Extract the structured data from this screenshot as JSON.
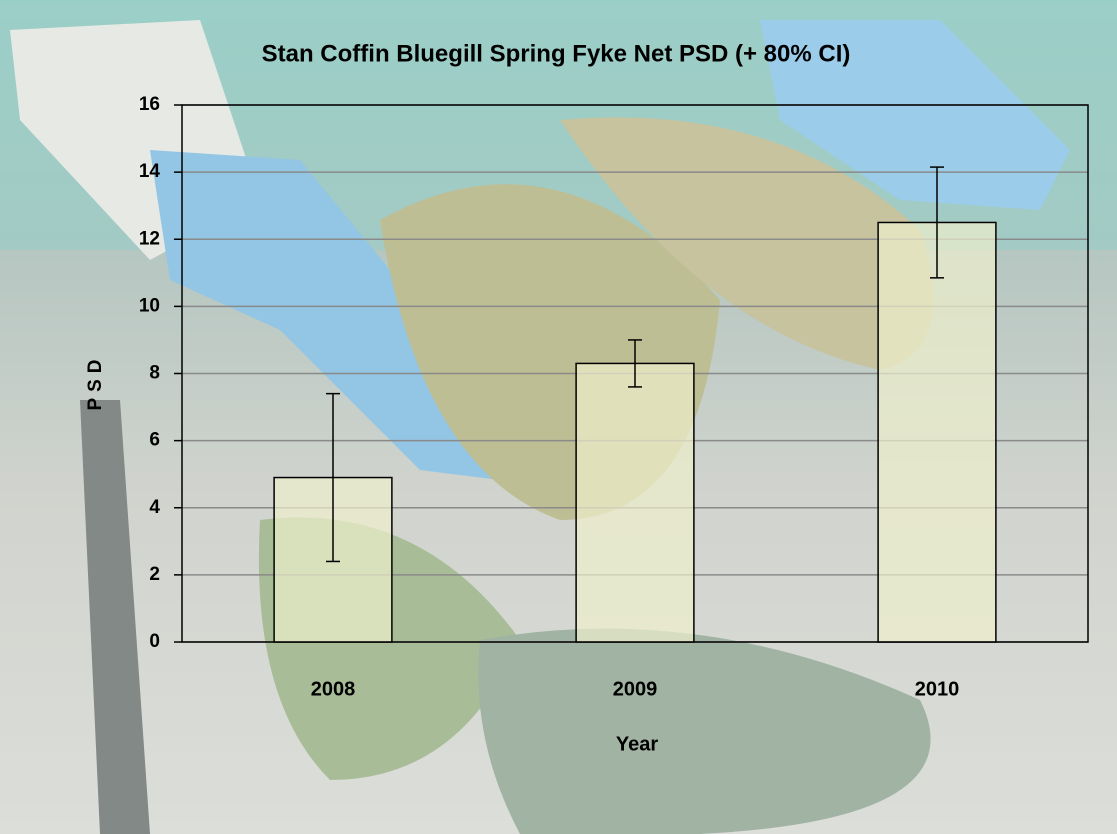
{
  "chart_data": {
    "type": "bar",
    "title": "Stan Coffin Bluegill Spring Fyke Net PSD (+ 80% CI)",
    "x_label": "Year",
    "y_label": "PSD",
    "categories": [
      "2008",
      "2009",
      "2010"
    ],
    "values": [
      4.9,
      8.3,
      12.5
    ],
    "errors": [
      2.5,
      0.7,
      1.65
    ],
    "color": "#eef0cc",
    "ylim": [
      0,
      16
    ],
    "yticks": [
      0,
      2,
      4,
      6,
      8,
      10,
      12,
      14,
      16
    ],
    "grid": true
  }
}
